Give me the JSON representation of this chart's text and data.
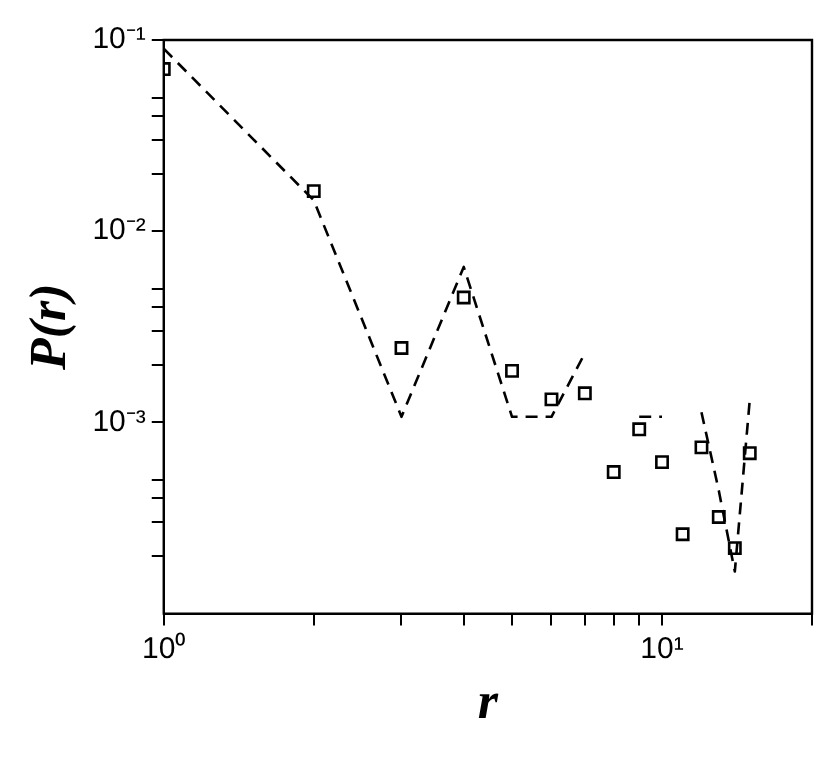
{
  "chart_data": {
    "type": "scatter",
    "xlabel": "r",
    "ylabel": "P(r)",
    "log": "xy",
    "grid": false,
    "legend": false,
    "x": [
      1,
      2,
      3,
      4,
      5,
      6,
      7,
      8,
      9,
      10,
      11,
      12,
      13,
      14,
      15
    ],
    "series": [
      {
        "color": "#000000",
        "marker": "square",
        "values": [
          0.0705,
          0.0162,
          0.00245,
          0.0045,
          0.00186,
          0.00132,
          0.00142,
          0.00055,
          0.00092,
          0.00062,
          0.00026,
          0.00074,
          0.00032,
          0.00022,
          0.00069
        ]
      },
      {
        "type": "line",
        "color": "#000000",
        "marker": "none",
        "line_style": "dashed",
        "values": [
          0.09,
          0.0145,
          0.00107,
          0.0065,
          0.00107,
          0.00107,
          0.0023,
          null,
          0.00107,
          0.00107,
          null,
          0.00113,
          0.00044,
          0.000166,
          0.00131
        ]
      }
    ],
    "xlim": [
      1,
      20
    ],
    "xticks": [
      {
        "value": 1,
        "label": "10⁰"
      },
      {
        "value": 2,
        "label": null
      },
      {
        "value": 3,
        "label": null
      },
      {
        "value": 4,
        "label": null
      },
      {
        "value": 5,
        "label": null
      },
      {
        "value": 6,
        "label": null
      },
      {
        "value": 7,
        "label": null
      },
      {
        "value": 8,
        "label": null
      },
      {
        "value": 9,
        "label": null
      },
      {
        "value": 10,
        "label": "10¹"
      },
      {
        "value": 20,
        "label": null
      }
    ],
    "ylim": [
      0.0001,
      0.1
    ],
    "yticks": [
      {
        "value": 0.0002,
        "label": null
      },
      {
        "value": 0.0003,
        "label": null
      },
      {
        "value": 0.0004,
        "label": null
      },
      {
        "value": 0.0005,
        "label": null
      },
      {
        "value": 0.001,
        "label": "10⁻³"
      },
      {
        "value": 0.002,
        "label": null
      },
      {
        "value": 0.003,
        "label": null
      },
      {
        "value": 0.004,
        "label": null
      },
      {
        "value": 0.005,
        "label": null
      },
      {
        "value": 0.01,
        "label": "10⁻²"
      },
      {
        "value": 0.02,
        "label": null
      },
      {
        "value": 0.03,
        "label": null
      },
      {
        "value": 0.04,
        "label": null
      },
      {
        "value": 0.05,
        "label": null
      },
      {
        "value": 0.1,
        "label": "10⁻¹"
      }
    ]
  }
}
